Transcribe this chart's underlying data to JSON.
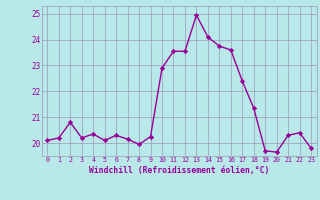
{
  "x": [
    0,
    1,
    2,
    3,
    4,
    5,
    6,
    7,
    8,
    9,
    10,
    11,
    12,
    13,
    14,
    15,
    16,
    17,
    18,
    19,
    20,
    21,
    22,
    23
  ],
  "y": [
    20.1,
    20.2,
    20.8,
    20.2,
    20.35,
    20.1,
    20.3,
    20.15,
    19.95,
    20.25,
    22.9,
    23.55,
    23.55,
    24.95,
    24.1,
    23.75,
    23.6,
    22.4,
    21.35,
    19.7,
    19.65,
    20.3,
    20.4,
    19.8
  ],
  "line_color": "#990099",
  "marker": "D",
  "marker_size": 2.2,
  "linewidth": 1.0,
  "bg_color": "#b8e8e8",
  "grid_color": "#9999bb",
  "xlabel": "Windchill (Refroidissement éolien,°C)",
  "xlabel_color": "#990099",
  "tick_color": "#990099",
  "ylim": [
    19.5,
    25.3
  ],
  "yticks": [
    20,
    21,
    22,
    23,
    24,
    25
  ],
  "xticks": [
    0,
    1,
    2,
    3,
    4,
    5,
    6,
    7,
    8,
    9,
    10,
    11,
    12,
    13,
    14,
    15,
    16,
    17,
    18,
    19,
    20,
    21,
    22,
    23
  ],
  "xlim": [
    -0.5,
    23.5
  ]
}
